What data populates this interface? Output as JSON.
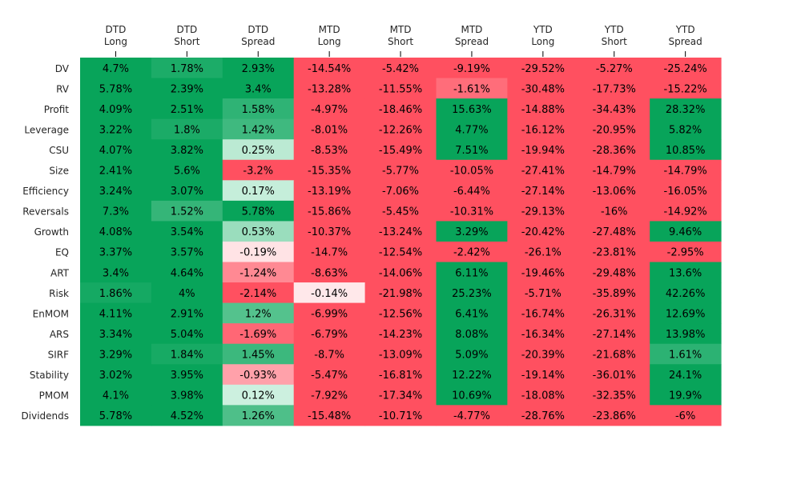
{
  "chart_data": {
    "type": "heatmap",
    "columns": [
      [
        "DTD",
        "Long"
      ],
      [
        "DTD",
        "Short"
      ],
      [
        "DTD",
        "Spread"
      ],
      [
        "MTD",
        "Long"
      ],
      [
        "MTD",
        "Short"
      ],
      [
        "MTD",
        "Spread"
      ],
      [
        "YTD",
        "Long"
      ],
      [
        "YTD",
        "Short"
      ],
      [
        "YTD",
        "Spread"
      ]
    ],
    "rows": [
      "DV",
      "RV",
      "Profit",
      "Leverage",
      "CSU",
      "Size",
      "Efficiency",
      "Reversals",
      "Growth",
      "EQ",
      "ART",
      "Risk",
      "EnMOM",
      "ARS",
      "SIRF",
      "Stability",
      "PMOM",
      "Dividends"
    ],
    "values": [
      [
        4.7,
        1.78,
        2.93,
        -14.54,
        -5.42,
        -9.19,
        -29.52,
        -5.27,
        -25.24
      ],
      [
        5.78,
        2.39,
        3.4,
        -13.28,
        -11.55,
        -1.61,
        -30.48,
        -17.73,
        -15.22
      ],
      [
        4.09,
        2.51,
        1.58,
        -4.97,
        -18.46,
        15.63,
        -14.88,
        -34.43,
        28.32
      ],
      [
        3.22,
        1.8,
        1.42,
        -8.01,
        -12.26,
        4.77,
        -16.12,
        -20.95,
        5.82
      ],
      [
        4.07,
        3.82,
        0.25,
        -8.53,
        -15.49,
        7.51,
        -19.94,
        -28.36,
        10.85
      ],
      [
        2.41,
        5.6,
        -3.2,
        -15.35,
        -5.77,
        -10.05,
        -27.41,
        -14.79,
        -14.79
      ],
      [
        3.24,
        3.07,
        0.17,
        -13.19,
        -7.06,
        -6.44,
        -27.14,
        -13.06,
        -16.05
      ],
      [
        7.3,
        1.52,
        5.78,
        -15.86,
        -5.45,
        -10.31,
        -29.13,
        -16.0,
        -14.92
      ],
      [
        4.08,
        3.54,
        0.53,
        -10.37,
        -13.24,
        3.29,
        -20.42,
        -27.48,
        9.46
      ],
      [
        3.37,
        3.57,
        -0.19,
        -14.7,
        -12.54,
        -2.42,
        -26.1,
        -23.81,
        -2.95
      ],
      [
        3.4,
        4.64,
        -1.24,
        -8.63,
        -14.06,
        6.11,
        -19.46,
        -29.48,
        13.6
      ],
      [
        1.86,
        4.0,
        -2.14,
        -0.14,
        -21.98,
        25.23,
        -5.71,
        -35.89,
        42.26
      ],
      [
        4.11,
        2.91,
        1.2,
        -6.99,
        -12.56,
        6.41,
        -16.74,
        -26.31,
        12.69
      ],
      [
        3.34,
        5.04,
        -1.69,
        -6.79,
        -14.23,
        8.08,
        -16.34,
        -27.14,
        13.98
      ],
      [
        3.29,
        1.84,
        1.45,
        -8.7,
        -13.09,
        5.09,
        -20.39,
        -21.68,
        1.61
      ],
      [
        3.02,
        3.95,
        -0.93,
        -5.47,
        -16.81,
        12.22,
        -19.14,
        -36.01,
        24.1
      ],
      [
        4.1,
        3.98,
        0.12,
        -7.92,
        -17.34,
        10.69,
        -18.08,
        -32.35,
        19.9
      ],
      [
        5.78,
        4.52,
        1.26,
        -15.48,
        -10.71,
        -4.77,
        -28.76,
        -23.86,
        -6.0
      ]
    ],
    "value_suffix": "%",
    "colormap": {
      "negative_extreme": "#ff5060",
      "neutral": "#fffafa",
      "positive_neutral": "#e0f8ec",
      "positive_extreme": "#08a45a"
    },
    "grid": false,
    "legend": "none"
  }
}
